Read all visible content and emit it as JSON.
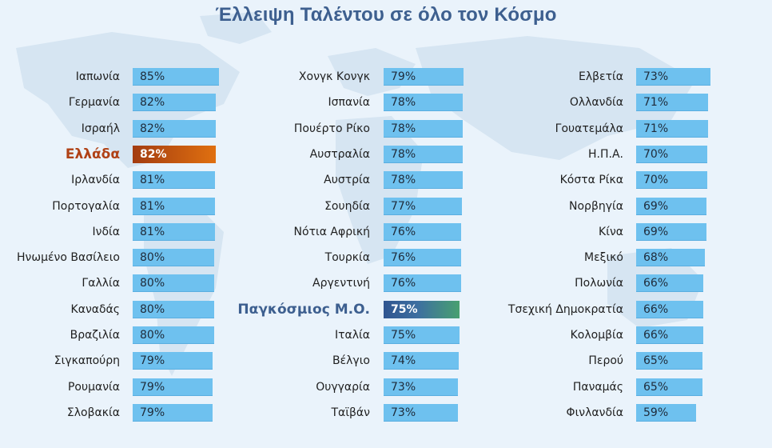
{
  "title": "Έλλειψη Ταλέντου σε όλο τον Κόσμο",
  "colors": {
    "bar": "#6ec1ef",
    "greece_start": "#a33c10",
    "greece_end": "#e07010",
    "world_start": "#2f5590",
    "world_end": "#48a070",
    "title": "#3d5f8f"
  },
  "chart_data": {
    "type": "bar",
    "orientation": "horizontal",
    "title": "Έλλειψη Ταλέντου σε όλο τον Κόσμο",
    "value_suffix": "%",
    "xlim": [
      0,
      100
    ],
    "columns": [
      [
        {
          "name": "Ιαπωνία",
          "value": 85,
          "label": "85%"
        },
        {
          "name": "Γερμανία",
          "value": 82,
          "label": "82%"
        },
        {
          "name": "Ισραήλ",
          "value": 82,
          "label": "82%"
        },
        {
          "name": "Ελλάδα",
          "value": 82,
          "label": "82%",
          "highlight": "greece"
        },
        {
          "name": "Ιρλανδία",
          "value": 81,
          "label": "81%"
        },
        {
          "name": "Πορτογαλία",
          "value": 81,
          "label": "81%"
        },
        {
          "name": "Ινδία",
          "value": 81,
          "label": "81%"
        },
        {
          "name": "Ηνωμένο Βασίλειο",
          "value": 80,
          "label": "80%"
        },
        {
          "name": "Γαλλία",
          "value": 80,
          "label": "80%"
        },
        {
          "name": "Καναδάς",
          "value": 80,
          "label": "80%"
        },
        {
          "name": "Βραζιλία",
          "value": 80,
          "label": "80%"
        },
        {
          "name": "Σιγκαπούρη",
          "value": 79,
          "label": "79%"
        },
        {
          "name": "Ρουμανία",
          "value": 79,
          "label": "79%"
        },
        {
          "name": "Σλοβακία",
          "value": 79,
          "label": "79%"
        }
      ],
      [
        {
          "name": "Χονγκ Κονγκ",
          "value": 79,
          "label": "79%"
        },
        {
          "name": "Ισπανία",
          "value": 78,
          "label": "78%"
        },
        {
          "name": "Πουέρτο Ρίκο",
          "value": 78,
          "label": "78%"
        },
        {
          "name": "Αυστραλία",
          "value": 78,
          "label": "78%"
        },
        {
          "name": "Αυστρία",
          "value": 78,
          "label": "78%"
        },
        {
          "name": "Σουηδία",
          "value": 77,
          "label": "77%"
        },
        {
          "name": "Νότια Αφρική",
          "value": 76,
          "label": "76%"
        },
        {
          "name": "Τουρκία",
          "value": 76,
          "label": "76%"
        },
        {
          "name": "Αργεντινή",
          "value": 76,
          "label": "76%"
        },
        {
          "name": "Παγκόσμιος Μ.Ο.",
          "value": 75,
          "label": "75%",
          "highlight": "world"
        },
        {
          "name": "Ιταλία",
          "value": 75,
          "label": "75%"
        },
        {
          "name": "Βέλγιο",
          "value": 74,
          "label": "74%"
        },
        {
          "name": "Ουγγαρία",
          "value": 73,
          "label": "73%"
        },
        {
          "name": "Ταϊβάν",
          "value": 73,
          "label": "73%"
        }
      ],
      [
        {
          "name": "Ελβετία",
          "value": 73,
          "label": "73%"
        },
        {
          "name": "Ολλανδία",
          "value": 71,
          "label": "71%"
        },
        {
          "name": "Γουατεμάλα",
          "value": 71,
          "label": "71%"
        },
        {
          "name": "Η.Π.Α.",
          "value": 70,
          "label": "70%"
        },
        {
          "name": "Κόστα Ρίκα",
          "value": 70,
          "label": "70%"
        },
        {
          "name": "Νορβηγία",
          "value": 69,
          "label": "69%"
        },
        {
          "name": "Κίνα",
          "value": 69,
          "label": "69%"
        },
        {
          "name": "Μεξικό",
          "value": 68,
          "label": "68%"
        },
        {
          "name": "Πολωνία",
          "value": 66,
          "label": "66%"
        },
        {
          "name": "Τσεχική Δημοκρατία",
          "value": 66,
          "label": "66%"
        },
        {
          "name": "Κολομβία",
          "value": 66,
          "label": "66%"
        },
        {
          "name": "Περού",
          "value": 65,
          "label": "65%"
        },
        {
          "name": "Παναμάς",
          "value": 65,
          "label": "65%"
        },
        {
          "name": "Φινλανδία",
          "value": 59,
          "label": "59%"
        }
      ]
    ]
  }
}
